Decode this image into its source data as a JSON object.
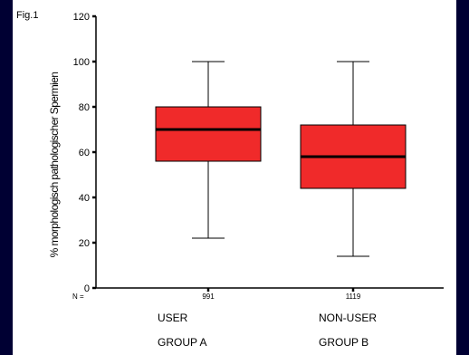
{
  "figure_label": "Fig.1",
  "chart_data": {
    "type": "box",
    "ylabel": "% morphologisch pathologischer Spermien",
    "ylim": [
      0,
      120
    ],
    "yticks": [
      0,
      20,
      40,
      60,
      80,
      100,
      120
    ],
    "n_prefix": "N =",
    "groups": [
      {
        "line1": "USER",
        "line2": "GROUP A",
        "n": "991",
        "whisker_low": 22,
        "q1": 56,
        "median": 70,
        "q3": 80,
        "whisker_high": 100
      },
      {
        "line1": "NON-USER",
        "line2": "GROUP B",
        "n": "1119",
        "whisker_low": 14,
        "q1": 44,
        "median": 58,
        "q3": 72,
        "whisker_high": 100
      }
    ],
    "box_color": "#f02a2a",
    "grid": false
  }
}
